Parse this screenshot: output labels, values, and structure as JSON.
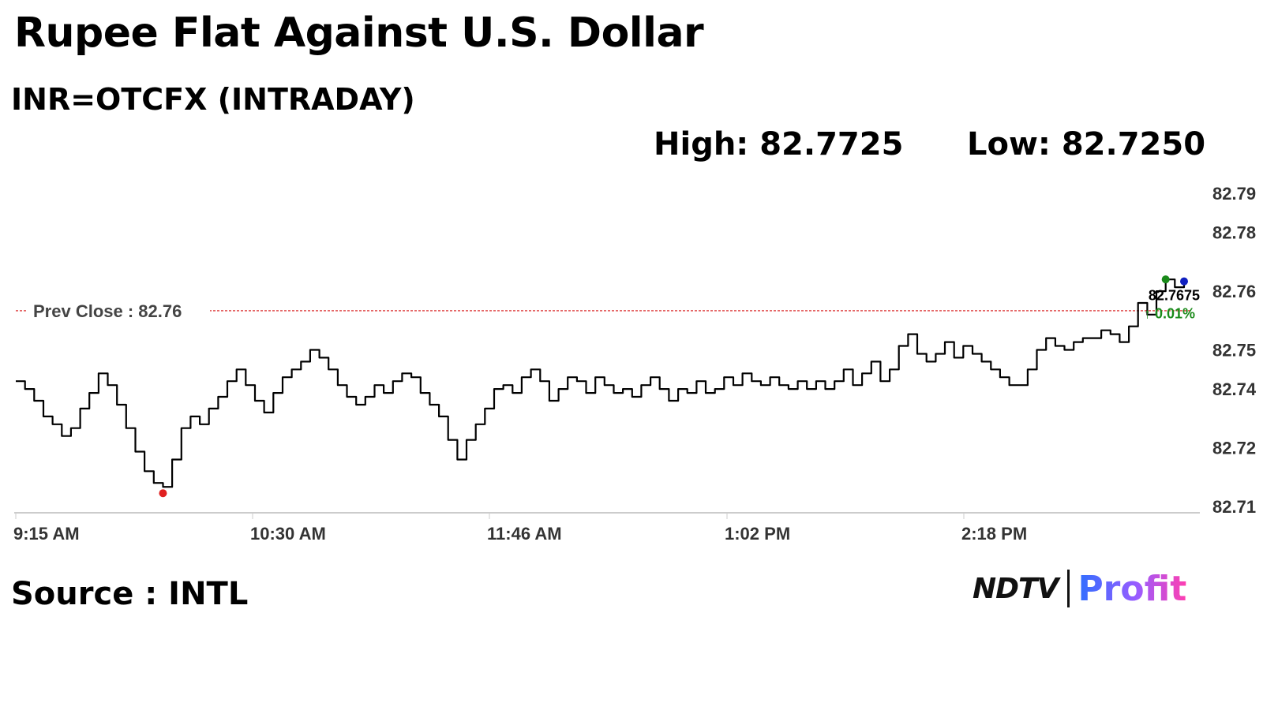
{
  "header": {
    "title": "Rupee Flat Against U.S. Dollar",
    "subtitle": "INR=OTCFX (INTRADAY)",
    "high_text": "High: 82.7725",
    "low_text": "Low: 82.7250"
  },
  "footer": {
    "source": "Source : INTL",
    "logo_ndtv": "NDTV",
    "logo_profit": "Profit"
  },
  "colors": {
    "line": "#000000",
    "prev_close_line": "#e05050",
    "low_marker": "#e02020",
    "high_marker": "#1a8a1a",
    "last_marker": "#1020c0",
    "axis": "#cccccc"
  },
  "chart_data": {
    "type": "line",
    "title": "",
    "xlabel": "",
    "ylabel": "",
    "x_ticks": [
      "9:15 AM",
      "10:30 AM",
      "11:46 AM",
      "1:02 PM",
      "2:18 PM"
    ],
    "y_ticks": [
      "82.79",
      "82.78",
      "82.76",
      "82.75",
      "82.74",
      "82.72",
      "82.71"
    ],
    "y_tick_values": [
      82.79,
      82.78,
      82.765,
      82.75,
      82.74,
      82.725,
      82.71
    ],
    "ylim": [
      82.71,
      82.79
    ],
    "prev_close": 82.76,
    "prev_close_label": "Prev Close : 82.76",
    "last_value_label": "82.7675",
    "change_label": "↑ 0.01%",
    "legend": "none",
    "grid": false,
    "series": [
      {
        "values": [
          82.742,
          82.74,
          82.737,
          82.733,
          82.731,
          82.728,
          82.73,
          82.735,
          82.739,
          82.744,
          82.741,
          82.736,
          82.73,
          82.724,
          82.719,
          82.716,
          82.715,
          82.722,
          82.73,
          82.733,
          82.731,
          82.735,
          82.738,
          82.742,
          82.745,
          82.741,
          82.737,
          82.734,
          82.739,
          82.743,
          82.745,
          82.747,
          82.75,
          82.748,
          82.745,
          82.741,
          82.738,
          82.736,
          82.738,
          82.741,
          82.739,
          82.742,
          82.744,
          82.743,
          82.739,
          82.736,
          82.733,
          82.727,
          82.722,
          82.727,
          82.731,
          82.735,
          82.74,
          82.741,
          82.739,
          82.743,
          82.745,
          82.742,
          82.737,
          82.74,
          82.743,
          82.742,
          82.739,
          82.743,
          82.741,
          82.739,
          82.74,
          82.738,
          82.741,
          82.743,
          82.74,
          82.737,
          82.74,
          82.739,
          82.742,
          82.739,
          82.74,
          82.743,
          82.741,
          82.744,
          82.742,
          82.741,
          82.743,
          82.741,
          82.74,
          82.742,
          82.74,
          82.742,
          82.74,
          82.742,
          82.745,
          82.741,
          82.744,
          82.747,
          82.742,
          82.745,
          82.751,
          82.754,
          82.749,
          82.747,
          82.749,
          82.752,
          82.748,
          82.751,
          82.749,
          82.747,
          82.745,
          82.743,
          82.741,
          82.741,
          82.745,
          82.75,
          82.753,
          82.751,
          82.75,
          82.752,
          82.753,
          82.753,
          82.755,
          82.754,
          82.752,
          82.756,
          82.762,
          82.759,
          82.765,
          82.768,
          82.766,
          82.7675
        ]
      }
    ],
    "high": 82.7725,
    "low": 82.725
  }
}
